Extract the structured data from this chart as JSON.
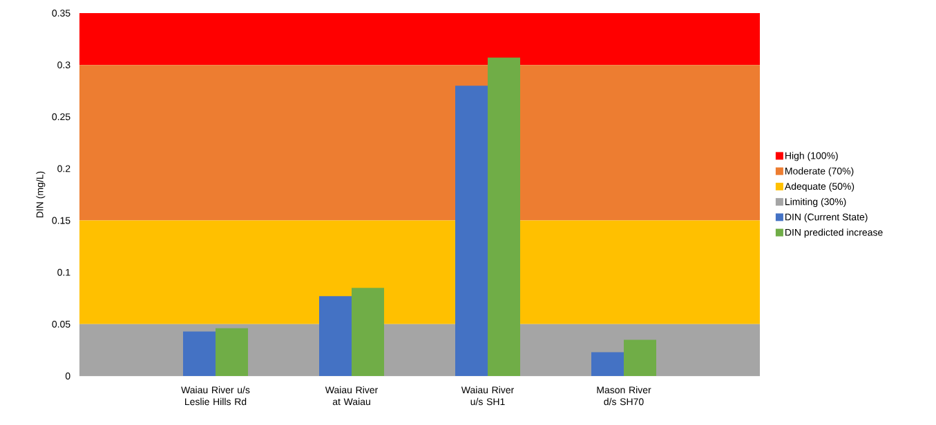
{
  "chart_data": {
    "type": "bar",
    "ylabel": "DIN (mg/L)",
    "categories": [
      "Waiau River u/s Leslie Hills Rd",
      "Waiau River at Waiau",
      "Waiau River u/s SH1",
      "Mason River d/s SH70"
    ],
    "series": [
      {
        "name": "DIN (Current State)",
        "color": "#4472c4",
        "values": [
          0.043,
          0.077,
          0.28,
          0.023
        ]
      },
      {
        "name": "DIN predicted increase",
        "color": "#70ad47",
        "values": [
          0.046,
          0.085,
          0.307,
          0.035
        ]
      }
    ],
    "ylim": [
      0,
      0.35
    ],
    "yticks": [
      0,
      0.05,
      0.1,
      0.15,
      0.2,
      0.25,
      0.3,
      0.35
    ],
    "bands": [
      {
        "axis": "y",
        "from": 0.3,
        "to": 0.35,
        "label": "High (100%)",
        "color": "#ff0000"
      },
      {
        "axis": "y",
        "from": 0.15,
        "to": 0.3,
        "label": "Moderate (70%)",
        "color": "#ed7d31"
      },
      {
        "axis": "y",
        "from": 0.05,
        "to": 0.15,
        "label": "Adequate (50%)",
        "color": "#ffc000"
      },
      {
        "axis": "y",
        "from": 0,
        "to": 0.05,
        "label": "Limiting (30%)",
        "color": "#a5a5a5"
      }
    ],
    "legend": "right",
    "grid": false
  }
}
